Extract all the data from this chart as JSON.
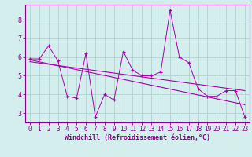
{
  "xlabel": "Windchill (Refroidissement éolien,°C)",
  "x_data": [
    0,
    1,
    2,
    3,
    4,
    5,
    6,
    7,
    8,
    9,
    10,
    11,
    12,
    13,
    14,
    15,
    16,
    17,
    18,
    19,
    20,
    21,
    22,
    23
  ],
  "y_scatter": [
    5.9,
    5.9,
    6.6,
    5.8,
    3.9,
    3.8,
    6.2,
    2.8,
    4.0,
    3.7,
    6.3,
    5.3,
    5.0,
    5.0,
    5.2,
    8.5,
    6.0,
    5.7,
    4.3,
    3.9,
    3.9,
    4.2,
    4.2,
    2.8
  ],
  "regression_line": [
    [
      0,
      5.85
    ],
    [
      23,
      3.45
    ]
  ],
  "regression_line2": [
    [
      0,
      5.75
    ],
    [
      23,
      4.2
    ]
  ],
  "ylim": [
    2.5,
    8.8
  ],
  "xlim": [
    -0.5,
    23.5
  ],
  "y_ticks": [
    3,
    4,
    5,
    6,
    7,
    8
  ],
  "x_ticks": [
    0,
    1,
    2,
    3,
    4,
    5,
    6,
    7,
    8,
    9,
    10,
    11,
    12,
    13,
    14,
    15,
    16,
    17,
    18,
    19,
    20,
    21,
    22,
    23
  ],
  "line_color": "#aa00aa",
  "bg_color": "#d4eeee",
  "grid_color": "#aacccc",
  "label_color": "#880088",
  "tick_fontsize": 5.5,
  "xlabel_fontsize": 6.0,
  "xlabel_fontweight": "bold"
}
